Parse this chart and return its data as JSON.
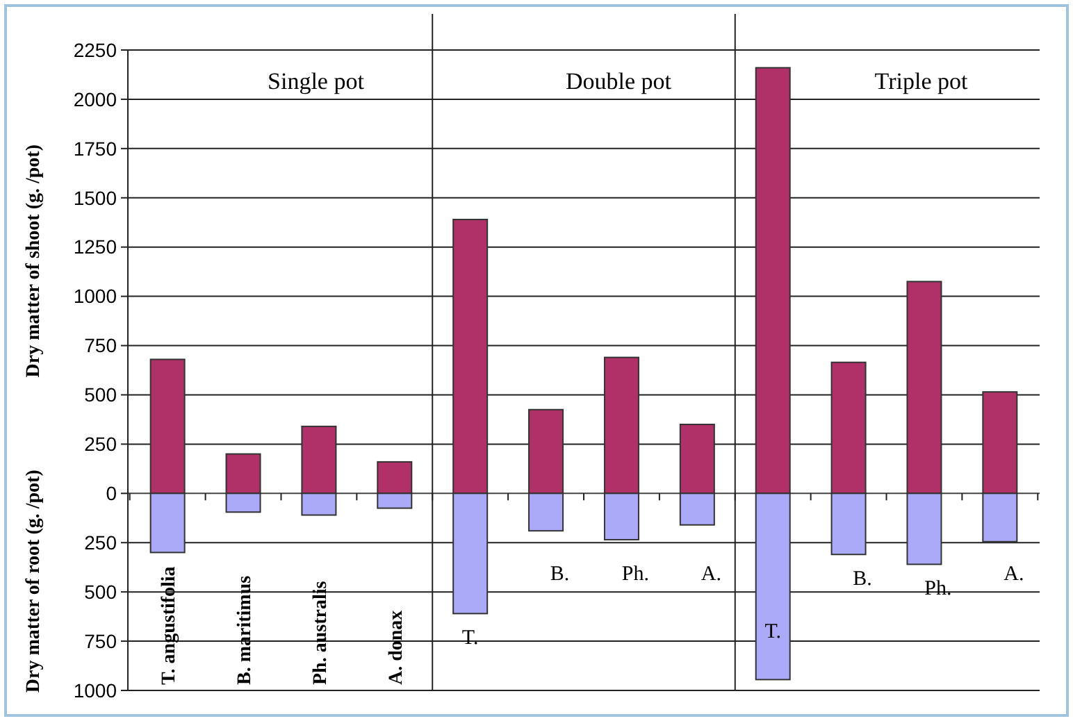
{
  "chart_data": {
    "type": "bar",
    "stacked": true,
    "ylabel": "Dry matter of shoot (g.  /pot)",
    "annotations": [
      "Single pot",
      "Double pot",
      "Triple pot",
      "Dry matter of root (g.  /pot)"
    ],
    "categories": [
      "T. angustifolia",
      "B.  maritimus",
      "Ph. australis",
      "A. donax",
      "T.",
      "B.",
      "Ph.",
      "A.",
      "T.",
      "B.",
      "Ph.",
      "A."
    ],
    "series": [
      {
        "color": "#b03068",
        "values": [
          680,
          200,
          340,
          160,
          1390,
          425,
          690,
          350,
          2160,
          665,
          1075,
          515
        ]
      },
      {
        "color": "#aaaaf8",
        "values": [
          -300,
          -95,
          -110,
          -75,
          -610,
          -190,
          -235,
          -160,
          -945,
          -310,
          -360,
          -245
        ]
      }
    ],
    "ylim": [
      -1000,
      2250
    ],
    "yticks": [
      {
        "value": -1000,
        "label": "1000"
      },
      {
        "value": -750,
        "label": "750"
      },
      {
        "value": -500,
        "label": "500"
      },
      {
        "value": -250,
        "label": "250"
      },
      0,
      250,
      500,
      750,
      1000,
      1250,
      1500,
      1750,
      2000,
      2250
    ],
    "grid": "y"
  }
}
